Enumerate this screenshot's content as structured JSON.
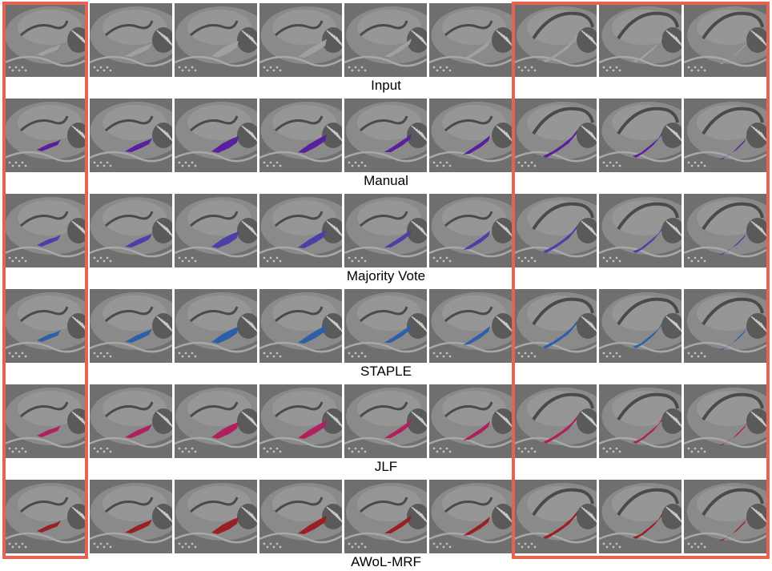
{
  "figure": {
    "rows": [
      {
        "label": "Input",
        "overlay_color": null
      },
      {
        "label": "Manual",
        "overlay_color": "#5a1f9e"
      },
      {
        "label": "Majority Vote",
        "overlay_color": "#4b3fa8"
      },
      {
        "label": "STAPLE",
        "overlay_color": "#2d5fa8"
      },
      {
        "label": "JLF",
        "overlay_color": "#b0205e"
      },
      {
        "label": "AWoL-MRF",
        "overlay_color": "#9a1f24"
      }
    ],
    "slices_per_row": 9,
    "highlight_color": "#e8634f",
    "highlight_groups": [
      "slice-1",
      "slices-7-9"
    ]
  }
}
